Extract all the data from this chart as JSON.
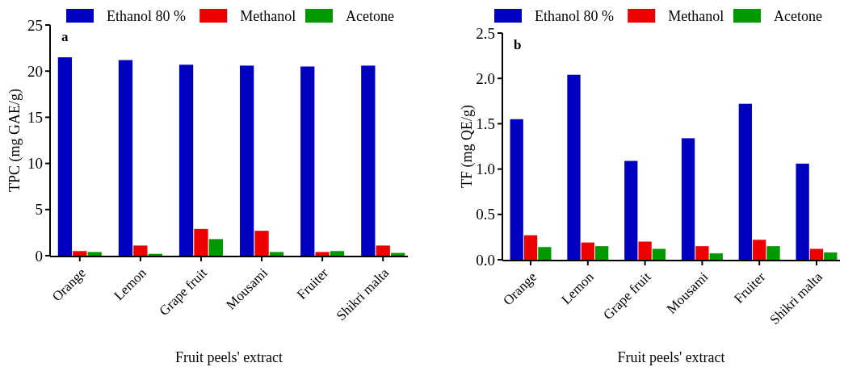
{
  "chart_data": [
    {
      "type": "bar",
      "ylabel": "TPC (mg GAE/g)",
      "xlabel": "Fruit peels' extract",
      "annotations": [
        "a"
      ],
      "categories": [
        "Orange",
        "Lemon",
        "Grape fruit",
        "Mousami",
        "Fruiter",
        "Shikri malta"
      ],
      "ylim": [
        0,
        25
      ],
      "yticks": [
        0,
        5,
        10,
        15,
        20,
        25
      ],
      "legend": "top",
      "series": [
        {
          "name": "Ethanol 80 %",
          "color": "#0000c0",
          "values": [
            21.5,
            21.2,
            20.7,
            20.6,
            20.5,
            20.6
          ]
        },
        {
          "name": "Methanol",
          "color": "#ee0000",
          "values": [
            0.5,
            1.1,
            2.9,
            2.7,
            0.4,
            1.1
          ]
        },
        {
          "name": "Acetone",
          "color": "#009a00",
          "values": [
            0.4,
            0.2,
            1.8,
            0.4,
            0.5,
            0.3
          ]
        }
      ]
    },
    {
      "type": "bar",
      "ylabel": "TF (mg QE/g)",
      "xlabel": "Fruit peels' extract",
      "annotations": [
        "b"
      ],
      "categories": [
        "Orange",
        "Lemon",
        "Grape fruit",
        "Mousami",
        "Fruiter",
        "Shikri malta"
      ],
      "ylim": [
        0,
        2.5
      ],
      "yticks": [
        {
          "value": 0,
          "label": "0.0"
        },
        {
          "value": 0.5,
          "label": "0.5"
        },
        {
          "value": 1,
          "label": "1.0"
        },
        {
          "value": 1.5,
          "label": "1.5"
        },
        {
          "value": 2,
          "label": "2.0"
        },
        {
          "value": 2.5,
          "label": "2.5"
        }
      ],
      "legend": "top",
      "series": [
        {
          "name": "Ethanol 80 %",
          "color": "#0000c0",
          "values": [
            1.55,
            2.04,
            1.09,
            1.34,
            1.72,
            1.06
          ]
        },
        {
          "name": "Methanol",
          "color": "#ee0000",
          "values": [
            0.27,
            0.19,
            0.2,
            0.15,
            0.22,
            0.12
          ]
        },
        {
          "name": "Acetone",
          "color": "#009a00",
          "values": [
            0.14,
            0.15,
            0.12,
            0.07,
            0.15,
            0.08
          ]
        }
      ]
    }
  ]
}
